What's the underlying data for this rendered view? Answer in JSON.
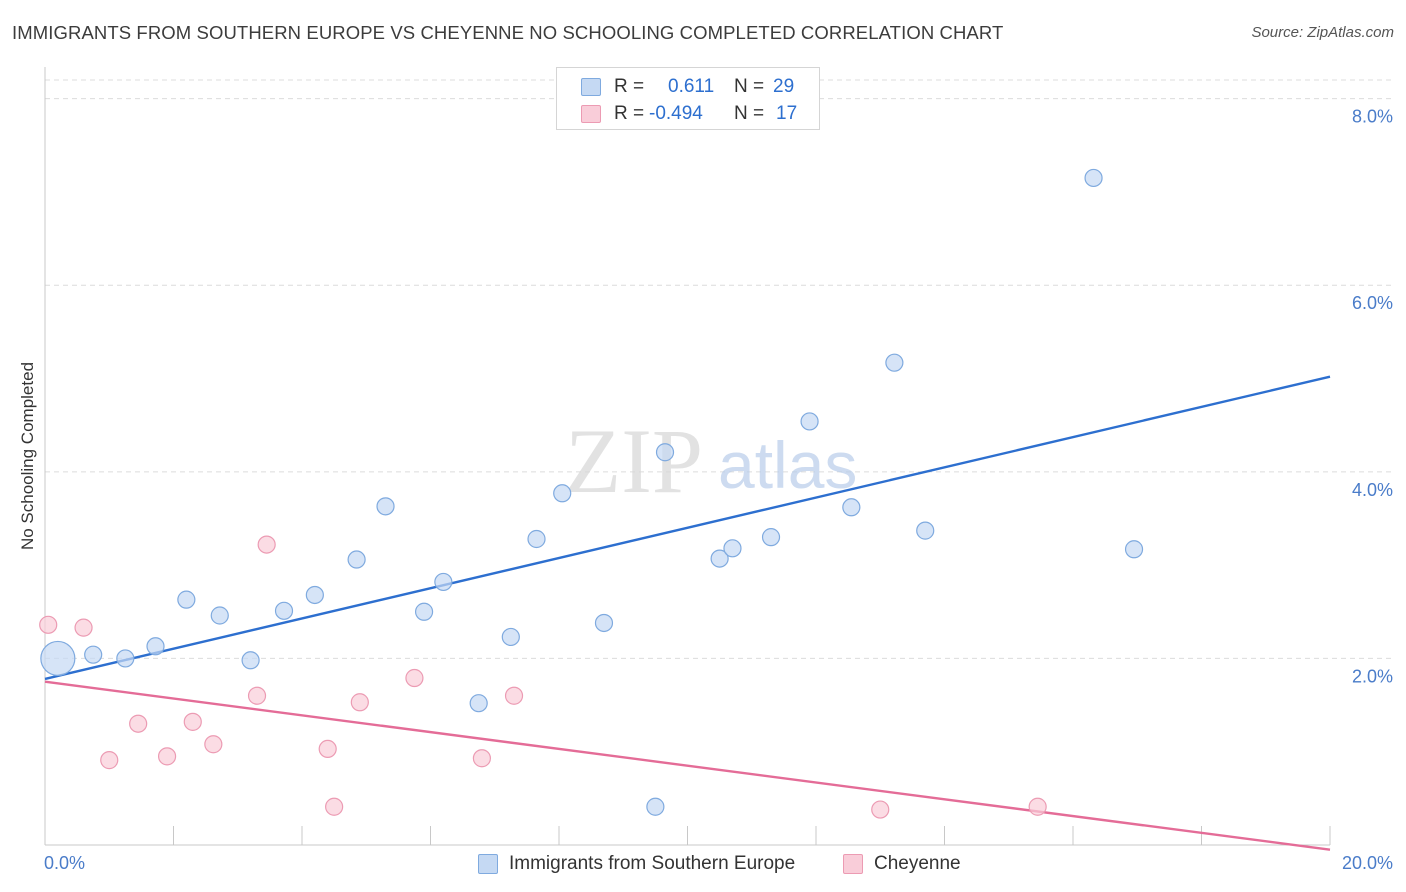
{
  "header": {
    "title": "IMMIGRANTS FROM SOUTHERN EUROPE VS CHEYENNE NO SCHOOLING COMPLETED CORRELATION CHART",
    "source": "Source: ZipAtlas.com"
  },
  "watermark": {
    "zip": "ZIP",
    "atlas": "atlas"
  },
  "stats_legend": {
    "r_label": "R =",
    "n_label": "N =",
    "rows": [
      {
        "r": "0.611",
        "n": "29"
      },
      {
        "r": "-0.494",
        "n": "17"
      }
    ]
  },
  "colors": {
    "blue_fill": "#c5d9f3",
    "blue_stroke": "#7faadf",
    "blue_line": "#2d6fcf",
    "pink_fill": "#f9cdd9",
    "pink_stroke": "#ec9bb3",
    "pink_line": "#e46c97",
    "axis_text": "#4a7cc9",
    "grid": "#dcdcdc"
  },
  "chart_data": {
    "type": "scatter",
    "title": "IMMIGRANTS FROM SOUTHERN EUROPE VS CHEYENNE NO SCHOOLING COMPLETED CORRELATION CHART",
    "xlabel": "",
    "ylabel": "No Schooling Completed",
    "xlim": [
      0,
      20
    ],
    "ylim": [
      0,
      8.2
    ],
    "x_tick_labels": [
      {
        "value": 0,
        "label": "0.0%"
      },
      {
        "value": 20,
        "label": "20.0%"
      }
    ],
    "y_tick_labels": [
      {
        "value": 2,
        "label": "2.0%"
      },
      {
        "value": 4,
        "label": "4.0%"
      },
      {
        "value": 6,
        "label": "6.0%"
      },
      {
        "value": 8,
        "label": "8.0%"
      }
    ],
    "x_minor_ticks": [
      2,
      4,
      6,
      8,
      10,
      12,
      14,
      16,
      18,
      20
    ],
    "series": [
      {
        "name": "Immigrants from Southern Europe",
        "color": "blue",
        "r": 0.611,
        "n": 29,
        "trendline": {
          "x": [
            0,
            20
          ],
          "y": [
            1.78,
            5.02
          ]
        },
        "points": [
          {
            "x": 0.2,
            "y": 2.0,
            "big": true
          },
          {
            "x": 0.75,
            "y": 2.04
          },
          {
            "x": 1.25,
            "y": 2.0
          },
          {
            "x": 1.72,
            "y": 2.13
          },
          {
            "x": 2.2,
            "y": 2.63
          },
          {
            "x": 2.72,
            "y": 2.46
          },
          {
            "x": 3.2,
            "y": 1.98
          },
          {
            "x": 3.72,
            "y": 2.51
          },
          {
            "x": 4.2,
            "y": 2.68
          },
          {
            "x": 4.85,
            "y": 3.06
          },
          {
            "x": 5.3,
            "y": 3.63
          },
          {
            "x": 5.9,
            "y": 2.5
          },
          {
            "x": 6.2,
            "y": 2.82
          },
          {
            "x": 6.75,
            "y": 1.52
          },
          {
            "x": 7.25,
            "y": 2.23
          },
          {
            "x": 7.65,
            "y": 3.28
          },
          {
            "x": 8.05,
            "y": 3.77
          },
          {
            "x": 8.7,
            "y": 2.38
          },
          {
            "x": 9.5,
            "y": 0.41
          },
          {
            "x": 9.65,
            "y": 4.21
          },
          {
            "x": 10.5,
            "y": 3.07
          },
          {
            "x": 10.7,
            "y": 3.18
          },
          {
            "x": 11.3,
            "y": 3.3
          },
          {
            "x": 11.9,
            "y": 4.54
          },
          {
            "x": 12.55,
            "y": 3.62
          },
          {
            "x": 13.22,
            "y": 5.17
          },
          {
            "x": 13.7,
            "y": 3.37
          },
          {
            "x": 16.32,
            "y": 7.15
          },
          {
            "x": 16.95,
            "y": 3.17
          }
        ]
      },
      {
        "name": "Cheyenne",
        "color": "pink",
        "r": -0.494,
        "n": 17,
        "trendline": {
          "x": [
            0,
            20
          ],
          "y": [
            1.75,
            -0.05
          ]
        },
        "points": [
          {
            "x": 0.05,
            "y": 2.36
          },
          {
            "x": 0.6,
            "y": 2.33
          },
          {
            "x": 1.0,
            "y": 0.91
          },
          {
            "x": 1.45,
            "y": 1.3
          },
          {
            "x": 1.9,
            "y": 0.95
          },
          {
            "x": 2.3,
            "y": 1.32
          },
          {
            "x": 2.62,
            "y": 1.08
          },
          {
            "x": 3.3,
            "y": 1.6
          },
          {
            "x": 3.45,
            "y": 3.22
          },
          {
            "x": 4.4,
            "y": 1.03
          },
          {
            "x": 4.5,
            "y": 0.41
          },
          {
            "x": 4.9,
            "y": 1.53
          },
          {
            "x": 5.75,
            "y": 1.79
          },
          {
            "x": 6.8,
            "y": 0.93
          },
          {
            "x": 7.3,
            "y": 1.6
          },
          {
            "x": 13.0,
            "y": 0.38
          },
          {
            "x": 15.45,
            "y": 0.41
          }
        ]
      }
    ]
  }
}
